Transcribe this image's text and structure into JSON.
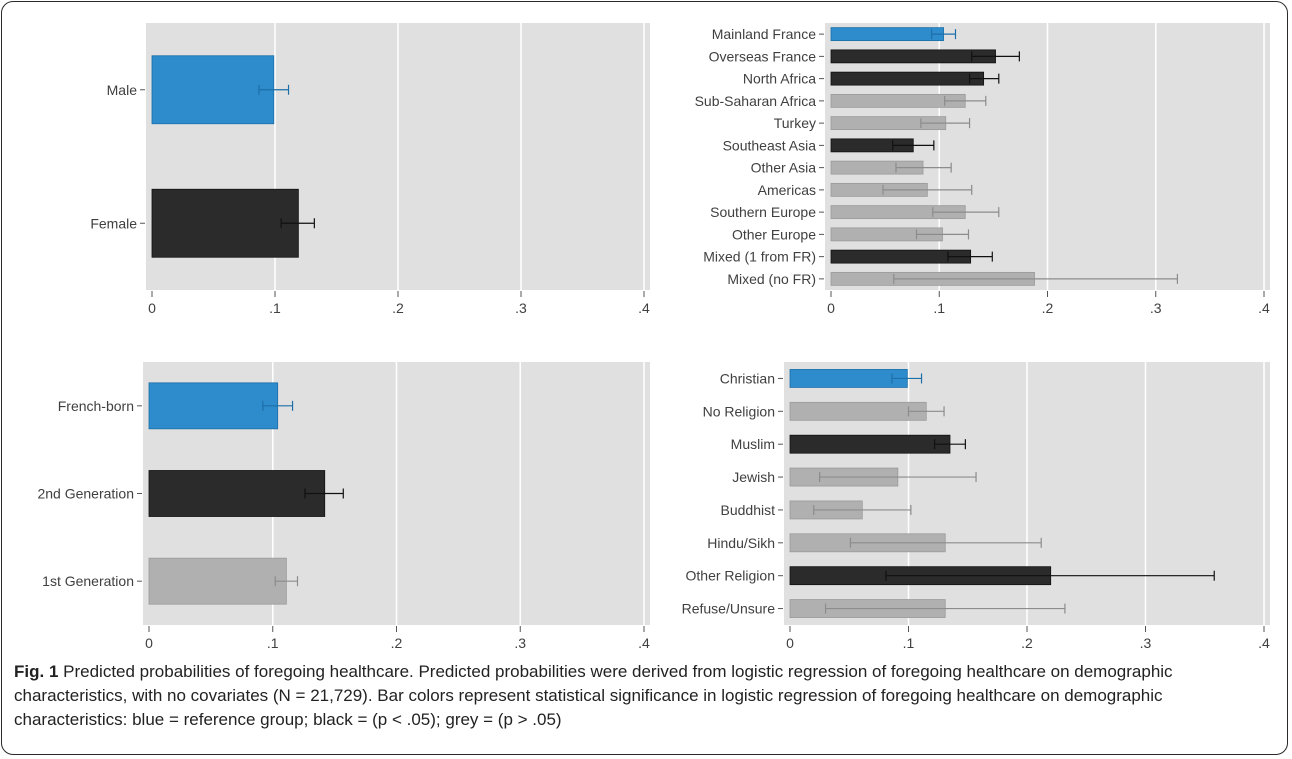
{
  "caption": {
    "label": "Fig. 1",
    "text": "Predicted probabilities of foregoing healthcare. Predicted probabilities were derived from logistic regression of foregoing healthcare on demographic characteristics, with no covariates (N = 21,729). Bar colors represent statistical significance in logistic regression of foregoing healthcare on demographic characteristics: blue = reference group; black = (p < .05); grey = (p > .05)"
  },
  "colors": {
    "blue": "#2e8bcc",
    "black": "#2b2b2b",
    "grey": "#b0b0b0",
    "panel_bg": "#e0e0e0",
    "grid": "#ffffff"
  },
  "chart_data": [
    {
      "type": "bar",
      "orientation": "horizontal",
      "title": "",
      "xlabel": "",
      "ylabel": "",
      "xlim": [
        0,
        0.4
      ],
      "xticks": [
        0,
        0.1,
        0.2,
        0.3,
        0.4
      ],
      "xtick_labels": [
        "0",
        ".1",
        ".2",
        ".3",
        ".4"
      ],
      "grid": true,
      "categories": [
        "Male",
        "Female"
      ],
      "values": [
        0.099,
        0.119
      ],
      "ci_low": [
        0.087,
        0.105
      ],
      "ci_high": [
        0.111,
        0.132
      ],
      "significance": [
        "blue",
        "black"
      ]
    },
    {
      "type": "bar",
      "orientation": "horizontal",
      "title": "",
      "xlabel": "",
      "ylabel": "",
      "xlim": [
        0,
        0.4
      ],
      "xticks": [
        0,
        0.1,
        0.2,
        0.3,
        0.4
      ],
      "xtick_labels": [
        "0",
        ".1",
        ".2",
        ".3",
        ".4"
      ],
      "grid": true,
      "categories": [
        "Mainland France",
        "Overseas France",
        "North Africa",
        "Sub-Saharan Africa",
        "Turkey",
        "Southeast Asia",
        "Other Asia",
        "Americas",
        "Southern Europe",
        "Other Europe",
        "Mixed (1 from FR)",
        "Mixed (no FR)"
      ],
      "values": [
        0.104,
        0.152,
        0.141,
        0.124,
        0.106,
        0.076,
        0.085,
        0.089,
        0.124,
        0.103,
        0.129,
        0.188
      ],
      "ci_low": [
        0.093,
        0.13,
        0.128,
        0.105,
        0.083,
        0.057,
        0.06,
        0.048,
        0.094,
        0.079,
        0.108,
        0.058
      ],
      "ci_high": [
        0.115,
        0.174,
        0.155,
        0.143,
        0.128,
        0.095,
        0.111,
        0.13,
        0.155,
        0.127,
        0.149,
        0.32
      ],
      "significance": [
        "blue",
        "black",
        "black",
        "grey",
        "grey",
        "black",
        "grey",
        "grey",
        "grey",
        "grey",
        "black",
        "grey"
      ]
    },
    {
      "type": "bar",
      "orientation": "horizontal",
      "title": "",
      "xlabel": "",
      "ylabel": "",
      "xlim": [
        0,
        0.4
      ],
      "xticks": [
        0,
        0.1,
        0.2,
        0.3,
        0.4
      ],
      "xtick_labels": [
        "0",
        ".1",
        ".2",
        ".3",
        ".4"
      ],
      "grid": true,
      "categories": [
        "French-born",
        "2nd Generation",
        "1st Generation"
      ],
      "values": [
        0.104,
        0.142,
        0.111
      ],
      "ci_low": [
        0.092,
        0.126,
        0.102
      ],
      "ci_high": [
        0.116,
        0.157,
        0.12
      ],
      "significance": [
        "blue",
        "black",
        "grey"
      ]
    },
    {
      "type": "bar",
      "orientation": "horizontal",
      "title": "",
      "xlabel": "",
      "ylabel": "",
      "xlim": [
        0,
        0.4
      ],
      "xticks": [
        0,
        0.1,
        0.2,
        0.3,
        0.4
      ],
      "xtick_labels": [
        "0",
        ".1",
        ".2",
        ".3",
        ".4"
      ],
      "grid": true,
      "categories": [
        "Christian",
        "No Religion",
        "Muslim",
        "Jewish",
        "Buddhist",
        "Hindu/Sikh",
        "Other Religion",
        "Refuse/Unsure"
      ],
      "values": [
        0.099,
        0.115,
        0.135,
        0.091,
        0.061,
        0.131,
        0.22,
        0.131
      ],
      "ci_low": [
        0.086,
        0.1,
        0.122,
        0.025,
        0.02,
        0.051,
        0.081,
        0.03
      ],
      "ci_high": [
        0.111,
        0.13,
        0.148,
        0.157,
        0.102,
        0.212,
        0.358,
        0.232
      ],
      "significance": [
        "blue",
        "grey",
        "black",
        "grey",
        "grey",
        "grey",
        "black",
        "grey"
      ]
    }
  ]
}
